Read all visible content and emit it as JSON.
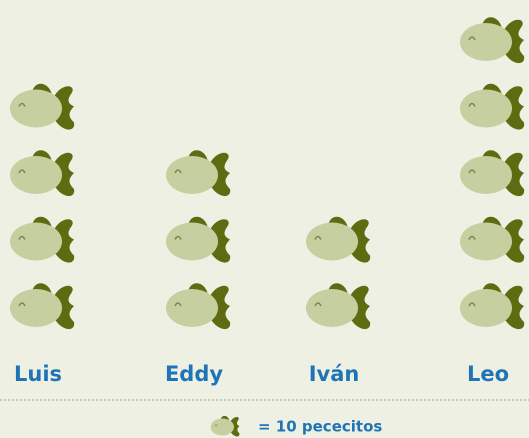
{
  "chart_data": {
    "type": "pictograph",
    "categories": [
      "Luis",
      "Eddy",
      "Iván",
      "Leo"
    ],
    "values": [
      40,
      30,
      20,
      50
    ],
    "unit": 10,
    "legend_label": "= 10 pececitos",
    "color": "#c6cf9f",
    "fin_color": "#5f6b10"
  }
}
